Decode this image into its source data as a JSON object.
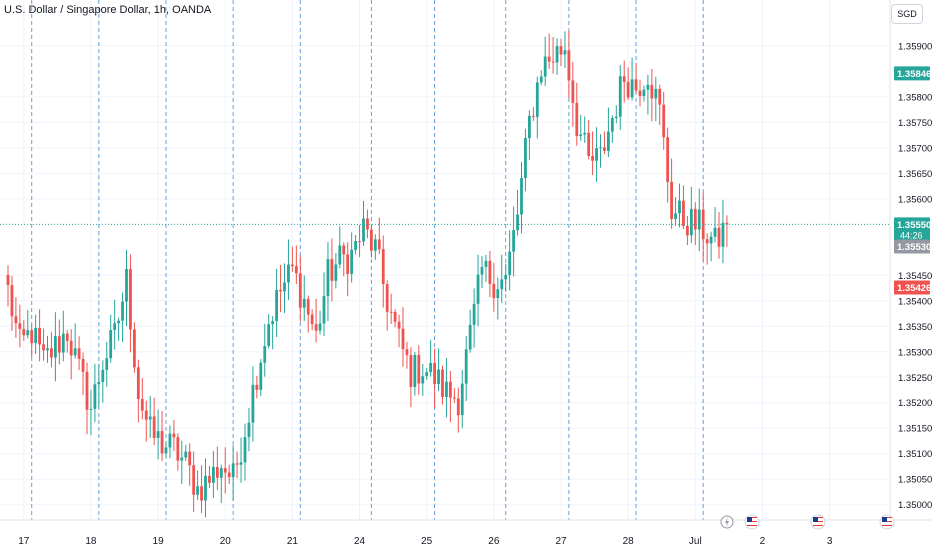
{
  "header": {
    "symbol_title": "U.S. Dollar / Singapore Dollar, 1h, OANDA",
    "currency_button": "SGD"
  },
  "colors": {
    "up": "#26a69a",
    "down": "#ef5350",
    "session_line": "#4a90d9",
    "profit_zone": "#d6efeb",
    "loss_zone": "#fbdcdc",
    "price_line": "#26a69a"
  },
  "position_tool": {
    "type": "long",
    "entry": 1.3553,
    "target": 1.35846,
    "stop": 1.35426,
    "start_index": 299,
    "end_index": 370
  },
  "price_labels": {
    "target": "1.35846",
    "current": "1.35550",
    "countdown": "44:26",
    "entry": "1.35530",
    "stop": "1.35426"
  },
  "event_icons": [
    "flash-event-icon",
    "us-flag-icon",
    "us-flag-icon",
    "us-flag-icon"
  ],
  "chart_data": {
    "type": "candlestick",
    "title": "U.S. Dollar / Singapore Dollar, 1h, OANDA",
    "timeframe": "1h",
    "ylim": [
      1.3497,
      1.3599
    ],
    "y_ticks": [
      1.359,
      1.358,
      1.3575,
      1.357,
      1.3565,
      1.356,
      1.3545,
      1.354,
      1.3535,
      1.353,
      1.3525,
      1.352,
      1.3515,
      1.351,
      1.3505,
      1.35
    ],
    "y_tick_labels": [
      "1.35900",
      "1.35800",
      "1.35750",
      "1.35700",
      "1.35650",
      "1.35600",
      "1.35450",
      "1.35400",
      "1.35350",
      "1.35300",
      "1.35250",
      "1.35200",
      "1.35150",
      "1.35100",
      "1.35050",
      "1.35000"
    ],
    "x_tick_labels": [
      "17",
      "18",
      "19",
      "20",
      "21",
      "24",
      "25",
      "26",
      "27",
      "28",
      "Jul",
      "2",
      "3"
    ],
    "x_tick_index": [
      4,
      21,
      38,
      55,
      72,
      89,
      106,
      123,
      140,
      157,
      174,
      191,
      208
    ],
    "session_break_index": [
      6,
      23,
      40,
      57,
      74,
      92,
      108,
      126,
      142,
      159,
      176
    ],
    "grid": true,
    "last_price": 1.3555,
    "anchors": [
      [
        0,
        1.3542
      ],
      [
        3,
        1.3531
      ],
      [
        6,
        1.3534
      ],
      [
        9,
        1.3528
      ],
      [
        12,
        1.3531
      ],
      [
        15,
        1.3534
      ],
      [
        18,
        1.3526
      ],
      [
        21,
        1.3519
      ],
      [
        24,
        1.3528
      ],
      [
        27,
        1.3533
      ],
      [
        30,
        1.3544
      ],
      [
        33,
        1.3522
      ],
      [
        36,
        1.3514
      ],
      [
        39,
        1.3512
      ],
      [
        42,
        1.3511
      ],
      [
        45,
        1.3508
      ],
      [
        48,
        1.3503
      ],
      [
        51,
        1.3505
      ],
      [
        54,
        1.3508
      ],
      [
        57,
        1.3505
      ],
      [
        60,
        1.3515
      ],
      [
        63,
        1.3526
      ],
      [
        66,
        1.3536
      ],
      [
        69,
        1.3542
      ],
      [
        72,
        1.3546
      ],
      [
        75,
        1.354
      ],
      [
        78,
        1.3533
      ],
      [
        81,
        1.3545
      ],
      [
        84,
        1.3548
      ],
      [
        87,
        1.3549
      ],
      [
        90,
        1.3554
      ],
      [
        93,
        1.355
      ],
      [
        96,
        1.354
      ],
      [
        99,
        1.3532
      ],
      [
        102,
        1.3526
      ],
      [
        105,
        1.3527
      ],
      [
        108,
        1.3525
      ],
      [
        111,
        1.3522
      ],
      [
        114,
        1.3521
      ],
      [
        117,
        1.3533
      ],
      [
        120,
        1.3546
      ],
      [
        123,
        1.3544
      ],
      [
        126,
        1.3544
      ],
      [
        129,
        1.3557
      ],
      [
        132,
        1.3575
      ],
      [
        135,
        1.3586
      ],
      [
        138,
        1.3588
      ],
      [
        141,
        1.359
      ],
      [
        144,
        1.3575
      ],
      [
        147,
        1.3567
      ],
      [
        150,
        1.3568
      ],
      [
        153,
        1.3576
      ],
      [
        156,
        1.3584
      ],
      [
        159,
        1.3582
      ],
      [
        162,
        1.3585
      ],
      [
        165,
        1.3577
      ],
      [
        168,
        1.3558
      ],
      [
        171,
        1.3556
      ],
      [
        174,
        1.3555
      ],
      [
        176,
        1.3554
      ],
      [
        179,
        1.3551
      ],
      [
        182,
        1.3555
      ]
    ]
  }
}
